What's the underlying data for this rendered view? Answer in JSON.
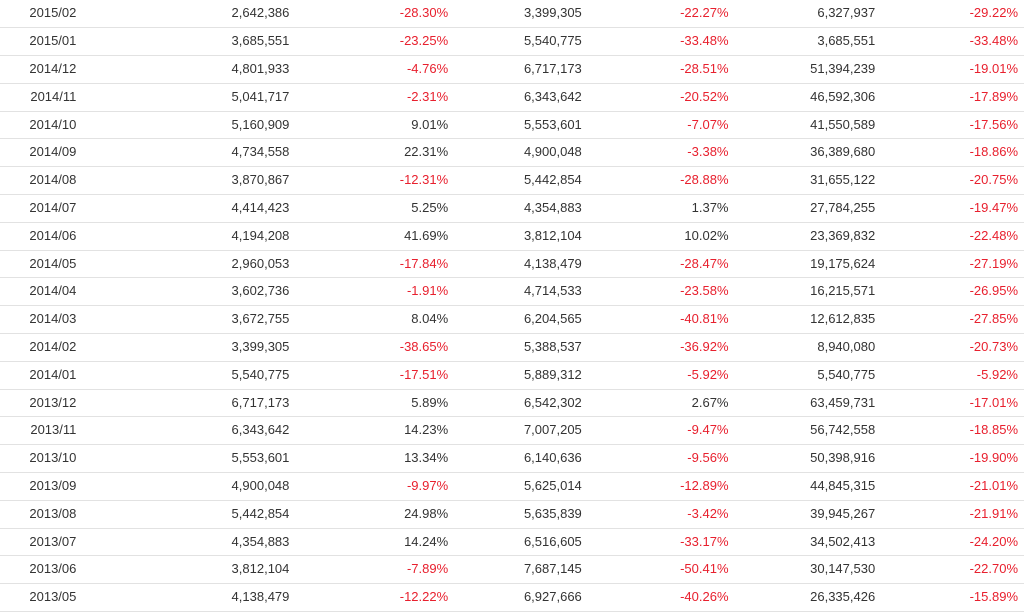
{
  "table": {
    "rows": [
      {
        "month": "2015/02",
        "v1": "2,642,386",
        "p1": "-28.30%",
        "v2": "3,399,305",
        "p2": "-22.27%",
        "v3": "6,327,937",
        "p3": "-29.22%"
      },
      {
        "month": "2015/01",
        "v1": "3,685,551",
        "p1": "-23.25%",
        "v2": "5,540,775",
        "p2": "-33.48%",
        "v3": "3,685,551",
        "p3": "-33.48%"
      },
      {
        "month": "2014/12",
        "v1": "4,801,933",
        "p1": "-4.76%",
        "v2": "6,717,173",
        "p2": "-28.51%",
        "v3": "51,394,239",
        "p3": "-19.01%"
      },
      {
        "month": "2014/11",
        "v1": "5,041,717",
        "p1": "-2.31%",
        "v2": "6,343,642",
        "p2": "-20.52%",
        "v3": "46,592,306",
        "p3": "-17.89%"
      },
      {
        "month": "2014/10",
        "v1": "5,160,909",
        "p1": "9.01%",
        "v2": "5,553,601",
        "p2": "-7.07%",
        "v3": "41,550,589",
        "p3": "-17.56%"
      },
      {
        "month": "2014/09",
        "v1": "4,734,558",
        "p1": "22.31%",
        "v2": "4,900,048",
        "p2": "-3.38%",
        "v3": "36,389,680",
        "p3": "-18.86%"
      },
      {
        "month": "2014/08",
        "v1": "3,870,867",
        "p1": "-12.31%",
        "v2": "5,442,854",
        "p2": "-28.88%",
        "v3": "31,655,122",
        "p3": "-20.75%"
      },
      {
        "month": "2014/07",
        "v1": "4,414,423",
        "p1": "5.25%",
        "v2": "4,354,883",
        "p2": "1.37%",
        "v3": "27,784,255",
        "p3": "-19.47%"
      },
      {
        "month": "2014/06",
        "v1": "4,194,208",
        "p1": "41.69%",
        "v2": "3,812,104",
        "p2": "10.02%",
        "v3": "23,369,832",
        "p3": "-22.48%"
      },
      {
        "month": "2014/05",
        "v1": "2,960,053",
        "p1": "-17.84%",
        "v2": "4,138,479",
        "p2": "-28.47%",
        "v3": "19,175,624",
        "p3": "-27.19%"
      },
      {
        "month": "2014/04",
        "v1": "3,602,736",
        "p1": "-1.91%",
        "v2": "4,714,533",
        "p2": "-23.58%",
        "v3": "16,215,571",
        "p3": "-26.95%"
      },
      {
        "month": "2014/03",
        "v1": "3,672,755",
        "p1": "8.04%",
        "v2": "6,204,565",
        "p2": "-40.81%",
        "v3": "12,612,835",
        "p3": "-27.85%"
      },
      {
        "month": "2014/02",
        "v1": "3,399,305",
        "p1": "-38.65%",
        "v2": "5,388,537",
        "p2": "-36.92%",
        "v3": "8,940,080",
        "p3": "-20.73%"
      },
      {
        "month": "2014/01",
        "v1": "5,540,775",
        "p1": "-17.51%",
        "v2": "5,889,312",
        "p2": "-5.92%",
        "v3": "5,540,775",
        "p3": "-5.92%"
      },
      {
        "month": "2013/12",
        "v1": "6,717,173",
        "p1": "5.89%",
        "v2": "6,542,302",
        "p2": "2.67%",
        "v3": "63,459,731",
        "p3": "-17.01%"
      },
      {
        "month": "2013/11",
        "v1": "6,343,642",
        "p1": "14.23%",
        "v2": "7,007,205",
        "p2": "-9.47%",
        "v3": "56,742,558",
        "p3": "-18.85%"
      },
      {
        "month": "2013/10",
        "v1": "5,553,601",
        "p1": "13.34%",
        "v2": "6,140,636",
        "p2": "-9.56%",
        "v3": "50,398,916",
        "p3": "-19.90%"
      },
      {
        "month": "2013/09",
        "v1": "4,900,048",
        "p1": "-9.97%",
        "v2": "5,625,014",
        "p2": "-12.89%",
        "v3": "44,845,315",
        "p3": "-21.01%"
      },
      {
        "month": "2013/08",
        "v1": "5,442,854",
        "p1": "24.98%",
        "v2": "5,635,839",
        "p2": "-3.42%",
        "v3": "39,945,267",
        "p3": "-21.91%"
      },
      {
        "month": "2013/07",
        "v1": "4,354,883",
        "p1": "14.24%",
        "v2": "6,516,605",
        "p2": "-33.17%",
        "v3": "34,502,413",
        "p3": "-24.20%"
      },
      {
        "month": "2013/06",
        "v1": "3,812,104",
        "p1": "-7.89%",
        "v2": "7,687,145",
        "p2": "-50.41%",
        "v3": "30,147,530",
        "p3": "-22.70%"
      },
      {
        "month": "2013/05",
        "v1": "4,138,479",
        "p1": "-12.22%",
        "v2": "6,927,666",
        "p2": "-40.26%",
        "v3": "26,335,426",
        "p3": "-15.89%"
      }
    ]
  },
  "colors": {
    "negative": "#e8202e",
    "text": "#333333",
    "row_border": "#e2e2e2"
  }
}
